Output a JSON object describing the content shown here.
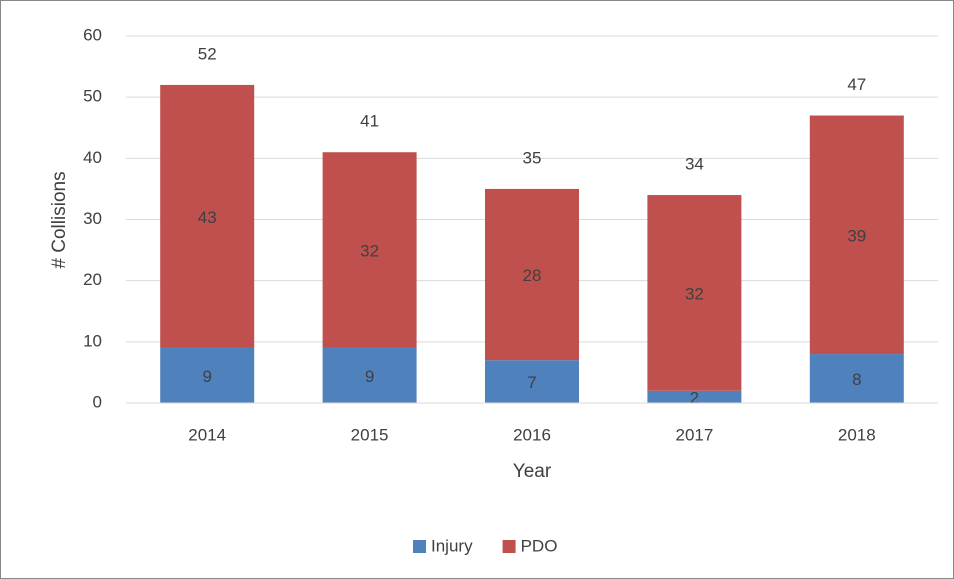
{
  "chart_data": {
    "type": "stacked_bar",
    "categories": [
      "2014",
      "2015",
      "2016",
      "2017",
      "2018"
    ],
    "series": [
      {
        "name": "Injury",
        "color": "#4f81bd",
        "values": [
          9,
          9,
          7,
          2,
          8
        ]
      },
      {
        "name": "PDO",
        "color": "#c0504d",
        "values": [
          43,
          32,
          28,
          32,
          39
        ]
      }
    ],
    "totals": [
      52,
      41,
      35,
      34,
      47
    ],
    "xlabel": "Year",
    "ylabel": "# Collisions",
    "ylim": [
      0,
      60
    ],
    "yticks": [
      0,
      10,
      20,
      30,
      40,
      50,
      60
    ],
    "grid": true,
    "legend": "bottom"
  }
}
